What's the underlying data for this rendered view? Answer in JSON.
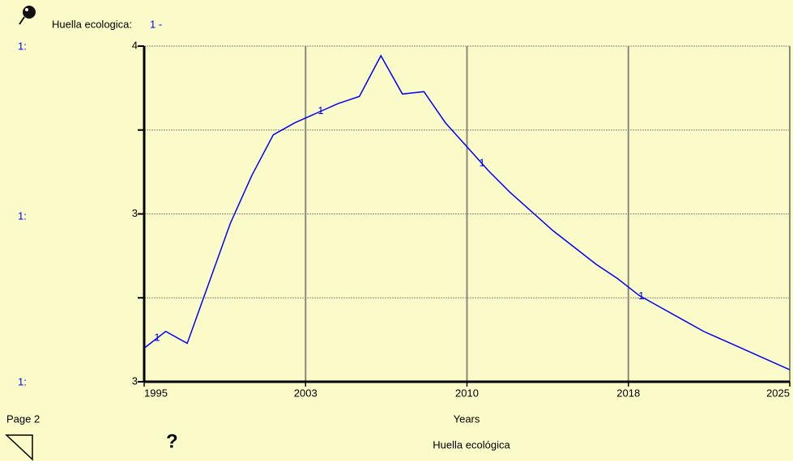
{
  "chart_data": {
    "type": "line",
    "title": "Huella ecológica",
    "legend_name": "Huella ecologica:",
    "legend_marker": "1 -",
    "axis_series_label": "1:",
    "page_label": "Page 2",
    "help_button": "?",
    "xlabel": "Years",
    "x": [
      1995,
      1996,
      1997,
      1998,
      1999,
      2000,
      2001,
      2002,
      2003,
      2004,
      2005,
      2006,
      2007,
      2008,
      2009,
      2010,
      2011,
      2012,
      2013,
      2014,
      2015,
      2016,
      2017,
      2018,
      2019,
      2020,
      2021,
      2022,
      2023,
      2024,
      2025
    ],
    "series": [
      {
        "name": "1",
        "color": "#0000ff",
        "values": [
          2.74,
          2.81,
          2.76,
          3.01,
          3.26,
          3.46,
          3.63,
          3.68,
          3.72,
          3.76,
          3.79,
          3.96,
          3.8,
          3.81,
          3.68,
          3.58,
          3.48,
          3.39,
          3.31,
          3.23,
          3.16,
          3.09,
          3.03,
          2.96,
          2.91,
          2.86,
          2.81,
          2.77,
          2.73,
          2.69,
          2.65
        ]
      }
    ],
    "xlim": [
      1995,
      2025
    ],
    "xticks": [
      1995,
      {
        "value": 2002.5,
        "label": "2003"
      },
      2010,
      {
        "value": 2017.5,
        "label": "2018"
      },
      2025
    ],
    "ylim": [
      2.6,
      4.0
    ],
    "yticks": [
      {
        "value": 2.6,
        "label": "3"
      },
      {
        "value": 3.3,
        "label": "3"
      },
      {
        "value": 4.0,
        "label": "4"
      }
    ],
    "yminor": [
      2.95,
      3.65
    ],
    "grid": true
  }
}
